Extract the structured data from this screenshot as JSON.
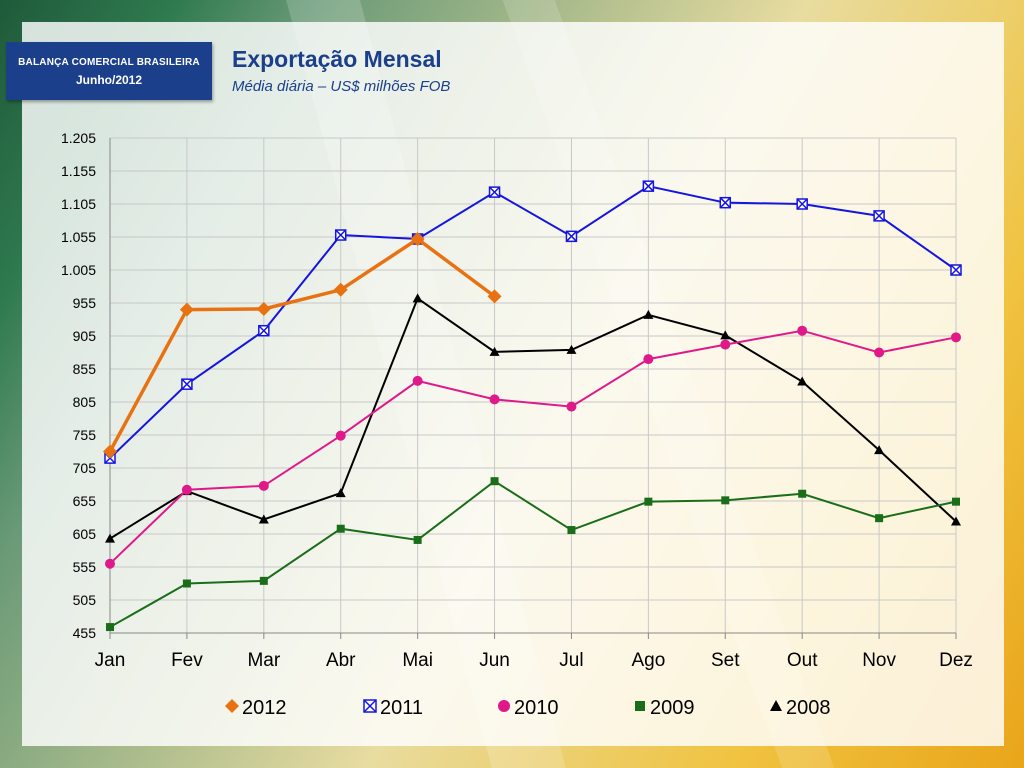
{
  "header": {
    "badge_line1": "BALANÇA COMERCIAL BRASILEIRA",
    "badge_line2": "Junho/2012",
    "title": "Exportação Mensal",
    "subtitle": "Média diária – US$ milhões FOB"
  },
  "chart_data": {
    "type": "line",
    "title": "Exportação Mensal",
    "subtitle": "Média diária – US$ milhões FOB",
    "xlabel": "",
    "ylabel": "",
    "categories": [
      "Jan",
      "Fev",
      "Mar",
      "Abr",
      "Mai",
      "Jun",
      "Jul",
      "Ago",
      "Set",
      "Out",
      "Nov",
      "Dez"
    ],
    "ylim": [
      455,
      1205
    ],
    "yticks": [
      1205,
      1155,
      1105,
      1055,
      1005,
      955,
      905,
      855,
      805,
      755,
      705,
      655,
      605,
      555,
      505,
      455
    ],
    "ytick_labels": [
      "1.205",
      "1.155",
      "1.105",
      "1.055",
      "1.005",
      "955",
      "905",
      "855",
      "805",
      "755",
      "705",
      "655",
      "605",
      "555",
      "505",
      "455"
    ],
    "grid": true,
    "legend_position": "bottom",
    "series": [
      {
        "name": "2012",
        "color": "#e87212",
        "marker": "diamond",
        "values": [
          730,
          945,
          946,
          975,
          1052,
          965,
          null,
          null,
          null,
          null,
          null,
          null
        ]
      },
      {
        "name": "2011",
        "color": "#1515e0",
        "marker": "x-square",
        "values": [
          720,
          832,
          913,
          1058,
          1052,
          1123,
          1056,
          1132,
          1107,
          1105,
          1087,
          1005
        ]
      },
      {
        "name": "2010",
        "color": "#e0198a",
        "marker": "circle",
        "values": [
          560,
          672,
          678,
          754,
          837,
          809,
          798,
          870,
          892,
          913,
          880,
          903
        ]
      },
      {
        "name": "2009",
        "color": "#1a6e1a",
        "marker": "square",
        "values": [
          464,
          530,
          534,
          613,
          596,
          685,
          611,
          654,
          656,
          666,
          629,
          654
        ]
      },
      {
        "name": "2008",
        "color": "#000000",
        "marker": "triangle",
        "values": [
          598,
          670,
          627,
          667,
          962,
          881,
          884,
          937,
          906,
          836,
          732,
          624
        ]
      }
    ]
  }
}
